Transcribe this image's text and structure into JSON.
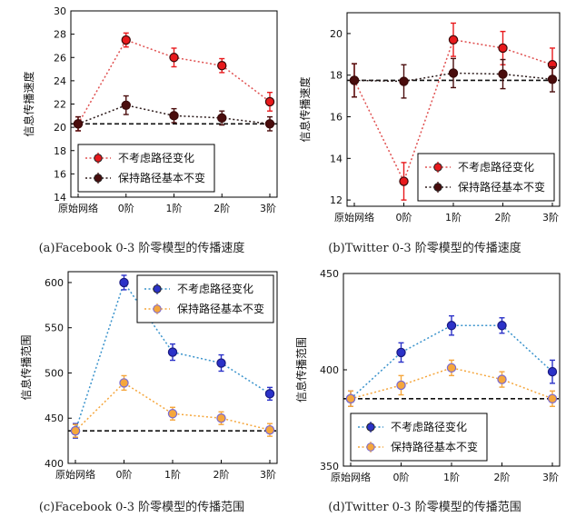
{
  "chart_data": [
    {
      "type": "line",
      "caption": "(a)Facebook 0-3 阶零模型的传播速度",
      "ylabel": "信息传播速度",
      "categories": [
        "原始网络",
        "0阶",
        "1阶",
        "2阶",
        "3阶"
      ],
      "ylim": [
        14,
        30
      ],
      "yticks": [
        14,
        16,
        18,
        20,
        22,
        24,
        26,
        28,
        30
      ],
      "baseline": 20.3,
      "legend_position": "bottom-left",
      "series": [
        {
          "name": "不考虑路径变化",
          "color": "#e8191c",
          "line_color": "#e05050",
          "values": [
            20.3,
            27.5,
            26.0,
            25.3,
            22.2
          ],
          "errors": [
            0.6,
            0.6,
            0.8,
            0.6,
            0.8
          ]
        },
        {
          "name": "保持路径基本不变",
          "color": "#4a0d0d",
          "line_color": "#2b1a1a",
          "values": [
            20.3,
            21.9,
            21.0,
            20.8,
            20.3
          ],
          "errors": [
            0.6,
            0.8,
            0.6,
            0.6,
            0.6
          ]
        }
      ]
    },
    {
      "type": "line",
      "caption": "(b)Twitter 0-3 阶零模型的传播速度",
      "ylabel": "信息传播速度",
      "categories": [
        "原始网络",
        "0阶",
        "1阶",
        "2阶",
        "3阶"
      ],
      "ylim": [
        11.7,
        21
      ],
      "yticks": [
        12,
        14,
        16,
        18,
        20
      ],
      "baseline": 17.75,
      "legend_position": "bottom-right",
      "series": [
        {
          "name": "不考虑路径变化",
          "color": "#e8191c",
          "line_color": "#e05050",
          "values": [
            17.75,
            12.9,
            19.7,
            19.3,
            18.5
          ],
          "errors": [
            0.8,
            0.9,
            0.8,
            0.8,
            0.8
          ]
        },
        {
          "name": "保持路径基本不变",
          "color": "#4a0d0d",
          "line_color": "#2b1a1a",
          "values": [
            17.75,
            17.7,
            18.1,
            18.05,
            17.8
          ],
          "errors": [
            0.8,
            0.8,
            0.7,
            0.7,
            0.6
          ]
        }
      ]
    },
    {
      "type": "line",
      "caption": "(c)Facebook 0-3 阶零模型的传播范围",
      "ylabel": "信息传播范围",
      "categories": [
        "原始网络",
        "0阶",
        "1阶",
        "2阶",
        "3阶"
      ],
      "ylim": [
        400,
        612
      ],
      "yticks": [
        400,
        450,
        500,
        550,
        600
      ],
      "baseline": 436,
      "legend_position": "top-right",
      "series": [
        {
          "name": "不考虑路径变化",
          "color": "#2b32c8",
          "line_color": "#3a93cc",
          "values": [
            436,
            600,
            523,
            511,
            477
          ],
          "errors": [
            8,
            8,
            9,
            9,
            7
          ]
        },
        {
          "name": "保持路径基本不变",
          "color": "#f5a63c",
          "line_color": "#f5a63c",
          "values": [
            436,
            489,
            455,
            450,
            437
          ],
          "errors": [
            7,
            8,
            7,
            7,
            7
          ]
        }
      ]
    },
    {
      "type": "line",
      "caption": "(d)Twitter 0-3 阶零模型的传播范围",
      "ylabel": "信息传播范围",
      "categories": [
        "原始网络",
        "0阶",
        "1阶",
        "2阶",
        "3阶"
      ],
      "ylim": [
        350,
        450
      ],
      "yticks": [
        350,
        400,
        450
      ],
      "baseline": 385,
      "legend_position": "bottom-left",
      "series": [
        {
          "name": "不考虑路径变化",
          "color": "#2b32c8",
          "line_color": "#3a93cc",
          "values": [
            385,
            409,
            423,
            423,
            399
          ],
          "errors": [
            4,
            5,
            5,
            4,
            6
          ]
        },
        {
          "name": "保持路径基本不变",
          "color": "#f5a63c",
          "line_color": "#f5a63c",
          "values": [
            385,
            392,
            401,
            395,
            385
          ],
          "errors": [
            4,
            5,
            4,
            4,
            4
          ]
        }
      ]
    }
  ]
}
